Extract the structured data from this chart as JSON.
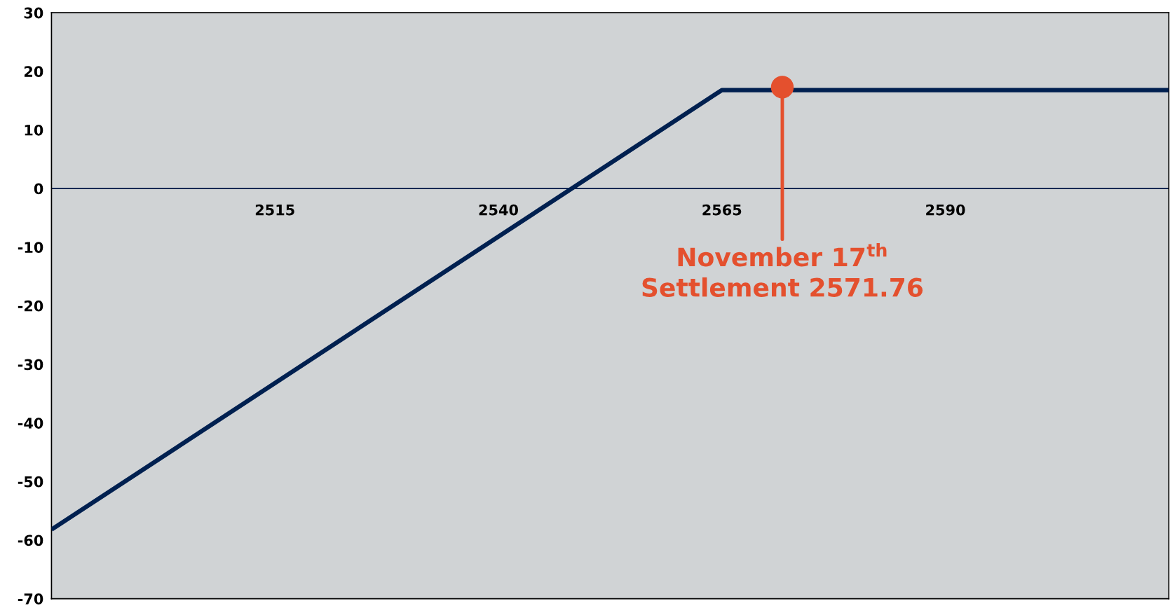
{
  "chart_data": {
    "type": "line",
    "series": [
      {
        "color": "#002050",
        "x": [
          2490,
          2565,
          2615
        ],
        "values": [
          -58.2,
          16.8,
          16.8
        ]
      },
      {
        "type": "scatter",
        "color": "#e4502e",
        "x": [
          2571.76
        ],
        "values": [
          17.3
        ]
      }
    ],
    "xlim": [
      2490,
      2615
    ],
    "xticks": [
      2515,
      2540,
      2565,
      2590
    ],
    "ylim": [
      -70,
      30
    ],
    "yticks": [
      -70,
      -60,
      -50,
      -40,
      -30,
      -20,
      -10,
      0,
      10,
      20,
      30
    ],
    "ref_lines": [
      {
        "axis": "y",
        "value": 0,
        "color": "#002050"
      }
    ],
    "annotations": [
      {
        "text": "November 17$^{th}$\nSettlement 2571.76",
        "x": 2571.76,
        "y": 17.3
      }
    ],
    "grid": false,
    "legend": false
  }
}
